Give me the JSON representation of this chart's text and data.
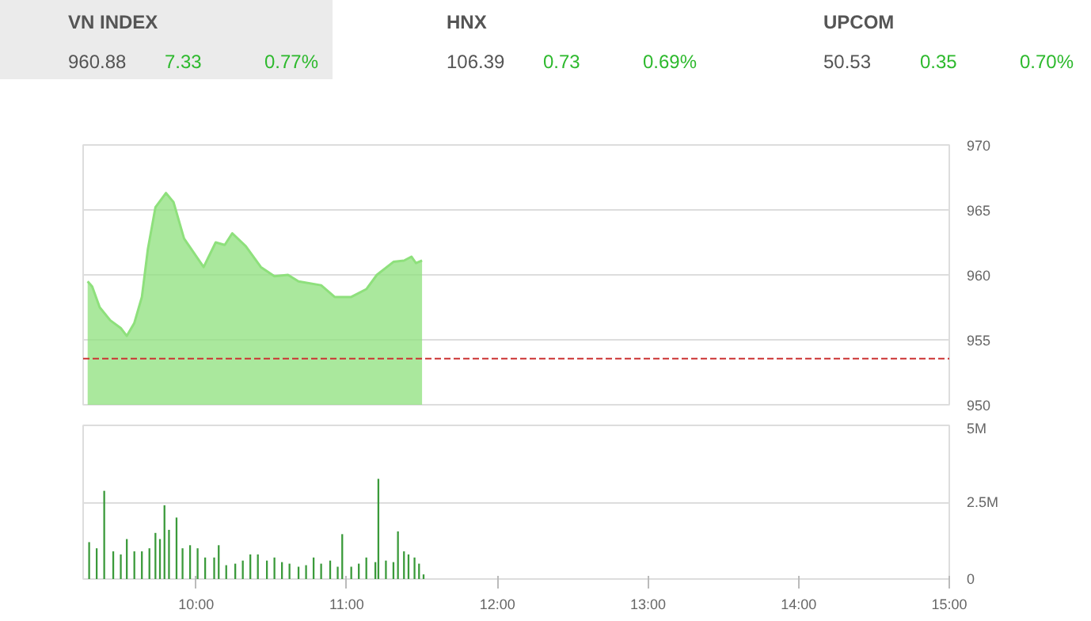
{
  "chart_data": [
    {
      "type": "other",
      "title": "VN INDEX",
      "annotations": [
        "960.88",
        "7.33",
        "0.77%"
      ]
    },
    {
      "type": "other",
      "title": "HNX",
      "annotations": [
        "106.39",
        "0.73",
        "0.69%"
      ]
    },
    {
      "type": "other",
      "title": "UPCOM",
      "annotations": [
        "50.53",
        "0.35",
        "0.70%"
      ]
    },
    {
      "type": "area",
      "x": [
        9.28,
        9.31,
        9.36,
        9.43,
        9.5,
        9.54,
        9.59,
        9.64,
        9.68,
        9.73,
        9.8,
        9.85,
        9.92,
        10.05,
        10.13,
        10.19,
        10.24,
        10.33,
        10.43,
        10.52,
        10.61,
        10.68,
        10.83,
        10.92,
        11.03,
        11.13,
        11.2,
        11.31,
        11.38,
        11.43,
        11.46,
        11.5
      ],
      "values": [
        959.5,
        959.1,
        957.5,
        956.5,
        955.9,
        955.3,
        956.3,
        958.3,
        962.0,
        965.2,
        966.3,
        965.6,
        962.8,
        960.6,
        962.5,
        962.3,
        963.2,
        962.2,
        960.6,
        959.9,
        960.0,
        959.5,
        959.2,
        958.3,
        958.3,
        958.9,
        960.0,
        961.0,
        961.1,
        961.4,
        960.9,
        961.1
      ],
      "color": "#8ee07c",
      "xlim": [
        9.25,
        15
      ],
      "ylim": [
        950,
        970
      ],
      "yticks": [
        950,
        955,
        960,
        965,
        970
      ],
      "tick_labels": "y",
      "grid": "y",
      "ref_lines": [
        {
          "axis": "y",
          "value": 953.55,
          "color": "#cc3333",
          "line_style": "dashed"
        }
      ]
    },
    {
      "type": "bar",
      "x": [
        9.29,
        9.34,
        9.39,
        9.45,
        9.5,
        9.54,
        9.59,
        9.64,
        9.69,
        9.73,
        9.76,
        9.79,
        9.82,
        9.87,
        9.91,
        9.96,
        10.01,
        10.06,
        10.12,
        10.15,
        10.2,
        10.26,
        10.31,
        10.36,
        10.41,
        10.47,
        10.52,
        10.57,
        10.62,
        10.68,
        10.73,
        10.78,
        10.83,
        10.89,
        10.94,
        10.97,
        11.03,
        11.08,
        11.13,
        11.19,
        11.21,
        11.26,
        11.31,
        11.34,
        11.38,
        11.41,
        11.45,
        11.48,
        11.51
      ],
      "values": [
        1.2,
        1.0,
        2.87,
        0.9,
        0.8,
        1.3,
        0.9,
        0.9,
        1.0,
        1.5,
        1.3,
        2.4,
        1.6,
        2.0,
        1.0,
        1.1,
        1.0,
        0.7,
        0.7,
        1.1,
        0.45,
        0.5,
        0.6,
        0.8,
        0.8,
        0.6,
        0.7,
        0.55,
        0.5,
        0.4,
        0.45,
        0.7,
        0.5,
        0.6,
        0.4,
        1.46,
        0.4,
        0.5,
        0.7,
        0.55,
        3.26,
        0.6,
        0.55,
        1.55,
        0.9,
        0.8,
        0.7,
        0.5,
        0.15
      ],
      "color": "#3a9a3a",
      "xlim": [
        9.25,
        15
      ],
      "xticks": [
        {
          "value": 10,
          "label": "10:00"
        },
        {
          "value": 11,
          "label": "11:00"
        },
        {
          "value": 12,
          "label": "12:00"
        },
        {
          "value": 13,
          "label": "13:00"
        },
        {
          "value": 14,
          "label": "14:00"
        },
        {
          "value": 15,
          "label": "15:00"
        }
      ],
      "ylim": [
        0,
        5
      ],
      "yticks": [
        {
          "value": 0,
          "label": "0"
        },
        {
          "value": 2.5,
          "label": "2.5M"
        },
        {
          "value": 5,
          "label": "5M"
        }
      ],
      "grid": "y"
    }
  ]
}
